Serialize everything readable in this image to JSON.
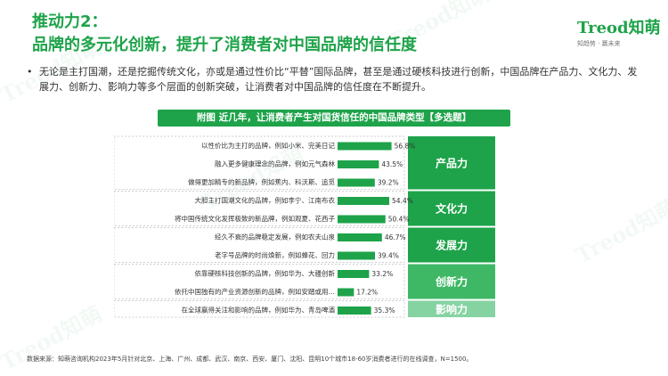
{
  "header": {
    "title_line1": "推动力2：",
    "title_line2": "品牌的多元化创新，提升了消费者对中国品牌的信任度"
  },
  "logo": {
    "mark": "Treod知萌",
    "tagline": "知趋势 · 赢未来"
  },
  "intro": {
    "bullet": "•",
    "text": "无论是主打国潮，还是挖掘传统文化，亦或是通过性价比“平替”国际品牌，甚至是通过硬核科技进行创新，中国品牌在产品力、文化力、发展力、创新力、影响力等多个层面的创新突破，让消费者对中国品牌的信任度在不断提升。"
  },
  "chart_title": "附图 近几年，让消费者产生对国货信任的中国品牌类型【多选题】",
  "source": "数据来源：知萌咨询机构2023年5月针对北京、上海、广州、成都、武汉、南京、西安、厦门、沈阳、昆明10个城市18-60岁消费者进行的在线调查，N=1500。",
  "watermark": "Treod知萌",
  "colors": {
    "brand": "#1ea34a",
    "bar": "#1ea34a",
    "group_dark": "#1ea34a",
    "group_mid": "#3fb866",
    "group_light": "#86d3a2",
    "group_pale": "#a9dfbc"
  },
  "chart_data": {
    "type": "bar",
    "orientation": "horizontal",
    "unit": "%",
    "xlim": [
      0,
      60
    ],
    "categories": [
      "以性价比为主打的品牌，例如小米、完美日记",
      "融入更多健康理念的品牌，例如元气森林",
      "做得更加精专的新品牌，例如蕉内、科沃斯、追觅",
      "大胆主打国潮文化的品牌，例如李宁、江南布衣",
      "将中国传统文化发挥极致的新品牌，例如观夏、花西子",
      "经久不衰的品牌稳定发展，例如农夫山泉",
      "老字号品牌的时尚焕新，例如蜂花、回力",
      "依靠硬核科技创新的品牌，例如华为、大疆创新",
      "依托中国独有的产业资源创新的品牌，例如安踏或用…",
      "在全球赢得关注和影响的品牌，例如华为、青岛啤酒"
    ],
    "values": [
      56.8,
      43.5,
      39.2,
      54.4,
      50.4,
      46.7,
      39.4,
      33.2,
      17.2,
      35.3
    ],
    "value_labels": [
      "56.8%",
      "43.5%",
      "39.2%",
      "54.4%",
      "50.4%",
      "46.7%",
      "39.4%",
      "33.2%",
      "17.2%",
      "35.3%"
    ],
    "groups": [
      {
        "label": "产品力",
        "start": 0,
        "count": 3,
        "color": "#1ea34a"
      },
      {
        "label": "文化力",
        "start": 3,
        "count": 2,
        "color": "#1ea34a"
      },
      {
        "label": "发展力",
        "start": 5,
        "count": 2,
        "color": "#1ea34a"
      },
      {
        "label": "创新力",
        "start": 7,
        "count": 2,
        "color": "#3fb866"
      },
      {
        "label": "影响力",
        "start": 9,
        "count": 1,
        "color": "#86d3a2"
      }
    ]
  }
}
